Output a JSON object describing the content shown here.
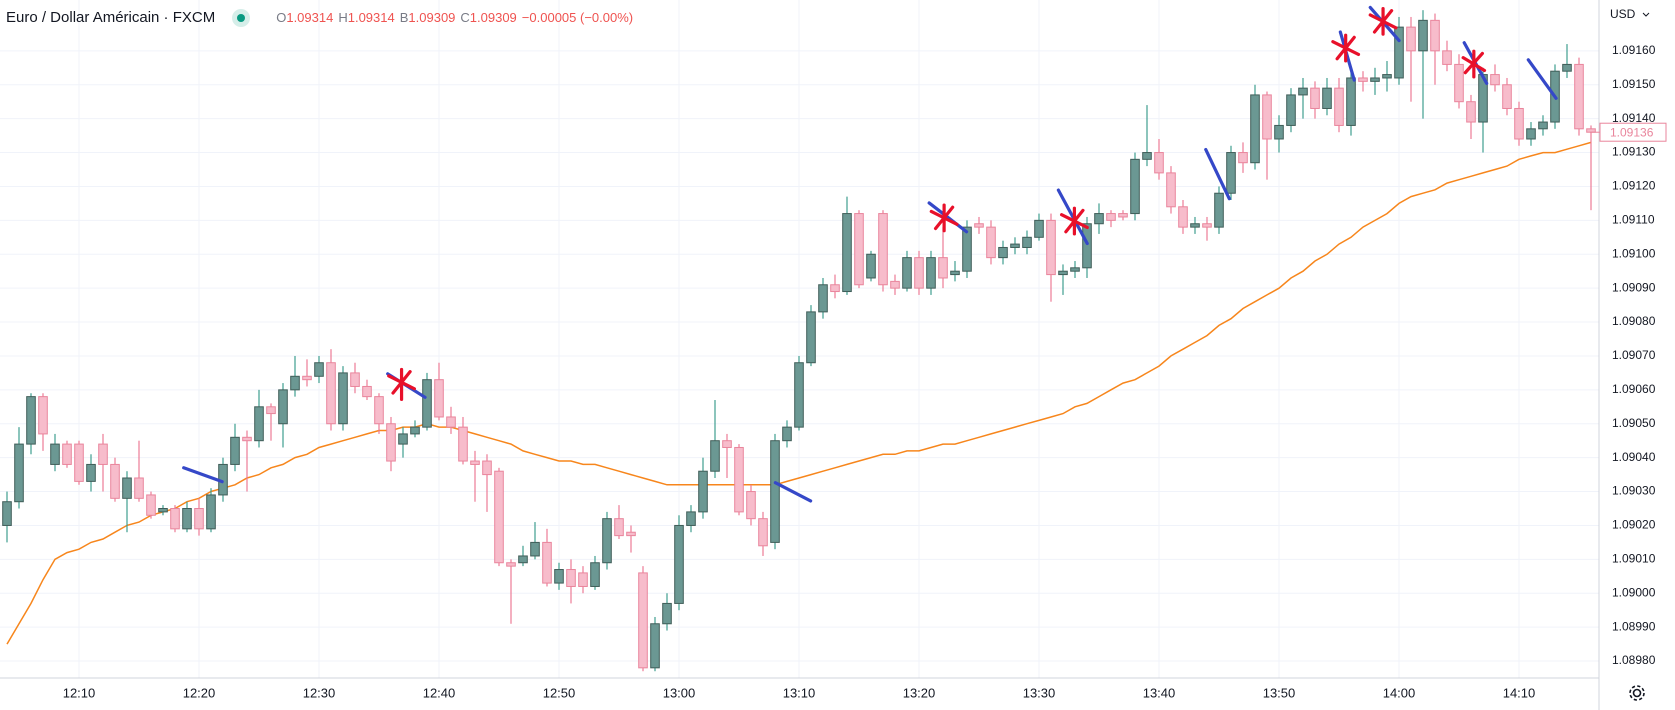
{
  "header": {
    "symbol": "Euro / Dollar Américain · FXCM",
    "ohlc": [
      {
        "label": "O",
        "value": 1.09314
      },
      {
        "label": "H",
        "value": 1.09314
      },
      {
        "label": "B",
        "value": 1.09309
      },
      {
        "label": "C",
        "value": 1.09309
      }
    ],
    "change": "−0.00005 (−0.00%)"
  },
  "chart_data": {
    "type": "candlestick",
    "currency": "USD",
    "last_price": 1.09136,
    "up_color": "#6b9893",
    "up_border": "#3f5d58",
    "up_wick_color": "#3e9e90",
    "down_color": "#f7bccb",
    "down_border": "#e9859c",
    "down_wick_color": "#ec7b95",
    "grid": true,
    "ylim": [
      1.08975,
      1.09175
    ],
    "yticks": [
      {
        "value": 1.0916,
        "label": "1.09160"
      },
      {
        "value": 1.0915,
        "label": "1.09150"
      },
      {
        "value": 1.0914,
        "label": "1.09140"
      },
      {
        "value": 1.0913,
        "label": "1.09130"
      },
      {
        "value": 1.0912,
        "label": "1.09120"
      },
      {
        "value": 1.0911,
        "label": "1.09110"
      },
      {
        "value": 1.091,
        "label": "1.09100"
      },
      {
        "value": 1.0909,
        "label": "1.09090"
      },
      {
        "value": 1.0908,
        "label": "1.09080"
      },
      {
        "value": 1.0907,
        "label": "1.09070"
      },
      {
        "value": 1.0906,
        "label": "1.09060"
      },
      {
        "value": 1.0905,
        "label": "1.09050"
      },
      {
        "value": 1.0904,
        "label": "1.09040"
      },
      {
        "value": 1.0903,
        "label": "1.09030"
      },
      {
        "value": 1.0902,
        "label": "1.09020"
      },
      {
        "value": 1.0901,
        "label": "1.09010"
      },
      {
        "value": 1.09,
        "label": "1.09000"
      },
      {
        "value": 1.0899,
        "label": "1.08990"
      },
      {
        "value": 1.0898,
        "label": "1.08980"
      }
    ],
    "categories": [
      null,
      null,
      null,
      null,
      null,
      null,
      "12:10",
      null,
      null,
      null,
      null,
      null,
      null,
      null,
      null,
      null,
      "12:20",
      null,
      null,
      null,
      null,
      null,
      null,
      null,
      null,
      null,
      "12:30",
      null,
      null,
      null,
      null,
      null,
      null,
      null,
      null,
      null,
      "12:40",
      null,
      null,
      null,
      null,
      null,
      null,
      null,
      null,
      null,
      "12:50",
      null,
      null,
      null,
      null,
      null,
      null,
      null,
      null,
      null,
      "13:00",
      null,
      null,
      null,
      null,
      null,
      null,
      null,
      null,
      null,
      "13:10",
      null,
      null,
      null,
      null,
      null,
      null,
      null,
      null,
      null,
      "13:20",
      null,
      null,
      null,
      null,
      null,
      null,
      null,
      null,
      null,
      "13:30",
      null,
      null,
      null,
      null,
      null,
      null,
      null,
      null,
      null,
      "13:40",
      null,
      null,
      null,
      null,
      null,
      null,
      null,
      null,
      null,
      "13:50",
      null,
      null,
      null,
      null,
      null,
      null,
      null,
      null,
      null,
      "14:00",
      null,
      null,
      null,
      null,
      null,
      null,
      null,
      null,
      null,
      "14:10",
      null,
      null,
      null,
      null,
      null,
      null
    ],
    "open": [
      1.0902,
      1.09027,
      1.09044,
      1.09058,
      1.09038,
      1.09044,
      1.09044,
      1.09033,
      1.09044,
      1.09038,
      1.09028,
      1.09034,
      1.09029,
      1.09024,
      1.09025,
      1.09019,
      1.09025,
      1.09019,
      1.09029,
      1.09038,
      1.09046,
      1.09045,
      1.09055,
      1.0905,
      1.0906,
      1.09064,
      1.09064,
      1.09068,
      1.0905,
      1.09065,
      1.09061,
      1.09058,
      1.0905,
      1.09044,
      1.09047,
      1.09049,
      1.09063,
      1.09052,
      1.09049,
      1.09039,
      1.09039,
      1.09036,
      1.09009,
      1.09009,
      1.09011,
      1.09015,
      1.09003,
      1.09007,
      1.09006,
      1.09002,
      1.09009,
      1.09022,
      1.09018,
      1.09006,
      1.08978,
      1.08991,
      1.08997,
      1.0902,
      1.09024,
      1.09036,
      1.09045,
      1.09043,
      1.0903,
      1.09022,
      1.09015,
      1.09045,
      1.09049,
      1.09068,
      1.09083,
      1.09091,
      1.09089,
      1.09112,
      1.09093,
      1.09112,
      1.09092,
      1.0909,
      1.09099,
      1.0909,
      1.09099,
      1.09094,
      1.09095,
      1.09109,
      1.09108,
      1.09099,
      1.09102,
      1.09102,
      1.09105,
      1.0911,
      1.09094,
      1.09095,
      1.09096,
      1.09109,
      1.09112,
      1.09112,
      1.09112,
      1.09128,
      1.0913,
      1.09124,
      1.09114,
      1.09108,
      1.09109,
      1.09108,
      1.09118,
      1.0913,
      1.09127,
      1.09147,
      1.09134,
      1.09138,
      1.09147,
      1.09149,
      1.09143,
      1.09149,
      1.09138,
      1.09152,
      1.09151,
      1.09152,
      1.09152,
      1.09167,
      1.0916,
      1.09169,
      1.0916,
      1.09156,
      1.09145,
      1.09139,
      1.09153,
      1.0915,
      1.09143,
      1.09134,
      1.09137,
      1.09139,
      1.09154,
      1.09156,
      1.09137
    ],
    "high": [
      1.0903,
      1.09049,
      1.09059,
      1.09059,
      1.09047,
      1.09045,
      1.09045,
      1.09041,
      1.09047,
      1.0904,
      1.09036,
      1.09045,
      1.0903,
      1.09026,
      1.09026,
      1.09027,
      1.09028,
      1.09031,
      1.0904,
      1.0905,
      1.09048,
      1.0906,
      1.09056,
      1.09062,
      1.0907,
      1.09069,
      1.0907,
      1.09072,
      1.09067,
      1.09068,
      1.09063,
      1.09059,
      1.09052,
      1.09049,
      1.09051,
      1.09065,
      1.09068,
      1.09055,
      1.09052,
      1.09042,
      1.09041,
      1.09037,
      1.0901,
      1.09014,
      1.09021,
      1.09019,
      1.09009,
      1.0901,
      1.09008,
      1.09011,
      1.09024,
      1.09026,
      1.0902,
      1.09008,
      1.08993,
      1.09,
      1.09023,
      1.09026,
      1.0904,
      1.09057,
      1.09047,
      1.09044,
      1.09032,
      1.09024,
      1.09047,
      1.09051,
      1.0907,
      1.09085,
      1.09093,
      1.09094,
      1.09117,
      1.09113,
      1.09101,
      1.09113,
      1.09094,
      1.09101,
      1.09101,
      1.09101,
      1.09108,
      1.09098,
      1.0911,
      1.09111,
      1.0911,
      1.09104,
      1.09105,
      1.09107,
      1.09112,
      1.09112,
      1.09097,
      1.09098,
      1.09111,
      1.09115,
      1.09113,
      1.09113,
      1.0913,
      1.09144,
      1.09134,
      1.09126,
      1.09116,
      1.09111,
      1.09111,
      1.0912,
      1.09132,
      1.09133,
      1.0915,
      1.09148,
      1.09141,
      1.09149,
      1.09152,
      1.09151,
      1.09152,
      1.09152,
      1.09155,
      1.09154,
      1.09155,
      1.09157,
      1.0917,
      1.0917,
      1.09172,
      1.09171,
      1.09163,
      1.09159,
      1.09147,
      1.09155,
      1.09156,
      1.09152,
      1.09145,
      1.09139,
      1.09141,
      1.09156,
      1.09162,
      1.09158,
      1.09138
    ],
    "low": [
      1.09015,
      1.09025,
      1.09041,
      1.09042,
      1.09036,
      1.09037,
      1.09032,
      1.0903,
      1.0903,
      1.09027,
      1.09018,
      1.09027,
      1.09022,
      1.09023,
      1.09018,
      1.09018,
      1.09017,
      1.09018,
      1.09027,
      1.09036,
      1.0903,
      1.09043,
      1.09045,
      1.09043,
      1.09058,
      1.09061,
      1.09062,
      1.09048,
      1.09048,
      1.09059,
      1.09057,
      1.09047,
      1.09036,
      1.0904,
      1.09046,
      1.09048,
      1.09051,
      1.09047,
      1.09038,
      1.09027,
      1.09024,
      1.09008,
      1.08991,
      1.09008,
      1.0901,
      1.09002,
      1.09001,
      1.08997,
      1.09,
      1.09001,
      1.09007,
      1.09016,
      1.09012,
      1.08977,
      1.08977,
      1.08989,
      1.08995,
      1.09018,
      1.09022,
      1.09034,
      1.09034,
      1.09023,
      1.0902,
      1.09011,
      1.09013,
      1.09043,
      1.09048,
      1.09067,
      1.09081,
      1.09087,
      1.09088,
      1.0909,
      1.09092,
      1.09089,
      1.09088,
      1.09089,
      1.09088,
      1.09088,
      1.0909,
      1.09092,
      1.09093,
      1.09106,
      1.09097,
      1.09097,
      1.091,
      1.091,
      1.09104,
      1.09086,
      1.09088,
      1.09093,
      1.09093,
      1.09106,
      1.09108,
      1.0911,
      1.0911,
      1.09126,
      1.09122,
      1.09112,
      1.09106,
      1.09106,
      1.09104,
      1.09106,
      1.09116,
      1.09124,
      1.09125,
      1.09122,
      1.0913,
      1.09136,
      1.0914,
      1.0914,
      1.09141,
      1.09136,
      1.09135,
      1.09148,
      1.09147,
      1.09148,
      1.0915,
      1.09145,
      1.0914,
      1.0915,
      1.09154,
      1.09143,
      1.09134,
      1.0913,
      1.09148,
      1.09141,
      1.09132,
      1.09132,
      1.09135,
      1.09137,
      1.09152,
      1.09135,
      1.09113
    ],
    "close": [
      1.09027,
      1.09044,
      1.09058,
      1.09047,
      1.09044,
      1.09038,
      1.09033,
      1.09038,
      1.09038,
      1.09028,
      1.09034,
      1.09028,
      1.09023,
      1.09025,
      1.09019,
      1.09025,
      1.09019,
      1.09029,
      1.09038,
      1.09046,
      1.09045,
      1.09055,
      1.09053,
      1.0906,
      1.09064,
      1.09063,
      1.09068,
      1.0905,
      1.09065,
      1.09061,
      1.09058,
      1.0905,
      1.09039,
      1.09047,
      1.09049,
      1.09063,
      1.09052,
      1.09049,
      1.09039,
      1.09038,
      1.09035,
      1.09009,
      1.09008,
      1.09011,
      1.09015,
      1.09003,
      1.09007,
      1.09002,
      1.09002,
      1.09009,
      1.09022,
      1.09017,
      1.09017,
      1.08978,
      1.08991,
      1.08997,
      1.0902,
      1.09024,
      1.09036,
      1.09045,
      1.09043,
      1.09024,
      1.09022,
      1.09014,
      1.09045,
      1.09049,
      1.09068,
      1.09083,
      1.09091,
      1.09089,
      1.09112,
      1.09091,
      1.091,
      1.09091,
      1.0909,
      1.09099,
      1.0909,
      1.09099,
      1.09093,
      1.09095,
      1.09108,
      1.09108,
      1.09099,
      1.09102,
      1.09103,
      1.09105,
      1.0911,
      1.09094,
      1.09095,
      1.09096,
      1.09109,
      1.09112,
      1.0911,
      1.09111,
      1.09128,
      1.0913,
      1.09124,
      1.09114,
      1.09108,
      1.09109,
      1.09108,
      1.09118,
      1.0913,
      1.09127,
      1.09147,
      1.09134,
      1.09138,
      1.09147,
      1.09149,
      1.09143,
      1.09149,
      1.09138,
      1.09152,
      1.09151,
      1.09152,
      1.09153,
      1.09167,
      1.0916,
      1.09169,
      1.0916,
      1.09156,
      1.09145,
      1.09139,
      1.09153,
      1.0915,
      1.09143,
      1.09134,
      1.09137,
      1.09139,
      1.09154,
      1.09156,
      1.09137,
      1.09136
    ],
    "ma": {
      "color": "#f7861c",
      "values": [
        1.08985,
        1.08991,
        1.08997,
        1.09004,
        1.0901,
        1.09012,
        1.09013,
        1.09015,
        1.09016,
        1.09018,
        1.0902,
        1.09021,
        1.09023,
        1.09024,
        1.09025,
        1.09027,
        1.09028,
        1.0903,
        1.09031,
        1.09032,
        1.09034,
        1.09035,
        1.09037,
        1.09038,
        1.0904,
        1.09041,
        1.09043,
        1.09044,
        1.09045,
        1.09046,
        1.09047,
        1.09048,
        1.09048,
        1.09049,
        1.09049,
        1.0905,
        1.09049,
        1.09049,
        1.09048,
        1.09047,
        1.09046,
        1.09045,
        1.09044,
        1.09042,
        1.09041,
        1.0904,
        1.09039,
        1.09039,
        1.09038,
        1.09038,
        1.09037,
        1.09036,
        1.09035,
        1.09034,
        1.09033,
        1.09032,
        1.09032,
        1.09032,
        1.09032,
        1.09032,
        1.09032,
        1.09032,
        1.09032,
        1.09032,
        1.09032,
        1.09033,
        1.09034,
        1.09035,
        1.09036,
        1.09037,
        1.09038,
        1.09039,
        1.0904,
        1.09041,
        1.09041,
        1.09042,
        1.09042,
        1.09043,
        1.09044,
        1.09044,
        1.09045,
        1.09046,
        1.09047,
        1.09048,
        1.09049,
        1.0905,
        1.09051,
        1.09052,
        1.09053,
        1.09055,
        1.09056,
        1.09058,
        1.0906,
        1.09062,
        1.09063,
        1.09065,
        1.09067,
        1.0907,
        1.09072,
        1.09074,
        1.09076,
        1.09079,
        1.09081,
        1.09084,
        1.09086,
        1.09088,
        1.0909,
        1.09093,
        1.09095,
        1.09098,
        1.091,
        1.09103,
        1.09105,
        1.09108,
        1.0911,
        1.09112,
        1.09115,
        1.09117,
        1.09118,
        1.09119,
        1.09121,
        1.09122,
        1.09123,
        1.09124,
        1.09125,
        1.09126,
        1.09128,
        1.09129,
        1.0913,
        1.0913,
        1.09131,
        1.09132,
        1.09133
      ]
    }
  }
}
